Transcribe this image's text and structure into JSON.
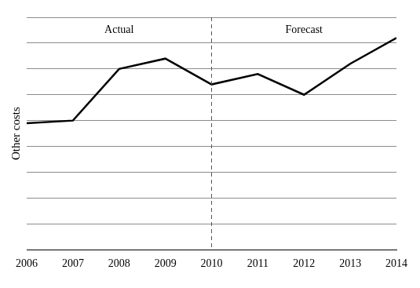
{
  "chart_data": {
    "type": "line",
    "y_label": "Other costs",
    "x": [
      2006,
      2007,
      2008,
      2009,
      2010,
      2011,
      2012,
      2013,
      2014
    ],
    "values": [
      4.9,
      5.0,
      7.0,
      7.4,
      6.4,
      6.8,
      6.0,
      7.2,
      8.2
    ],
    "color": "#000000",
    "xlim": [
      2006,
      2014
    ],
    "xticks": [
      2006,
      2007,
      2008,
      2009,
      2010,
      2011,
      2012,
      2013,
      2014
    ],
    "ylim": [
      0,
      9
    ],
    "yticks": [
      0,
      1,
      2,
      3,
      4,
      5,
      6,
      7,
      8,
      9
    ],
    "grid": true,
    "tick_labels": "x",
    "divider": 2010,
    "annotations": [
      {
        "text": "Actual"
      },
      {
        "text": "Forecast"
      }
    ]
  }
}
